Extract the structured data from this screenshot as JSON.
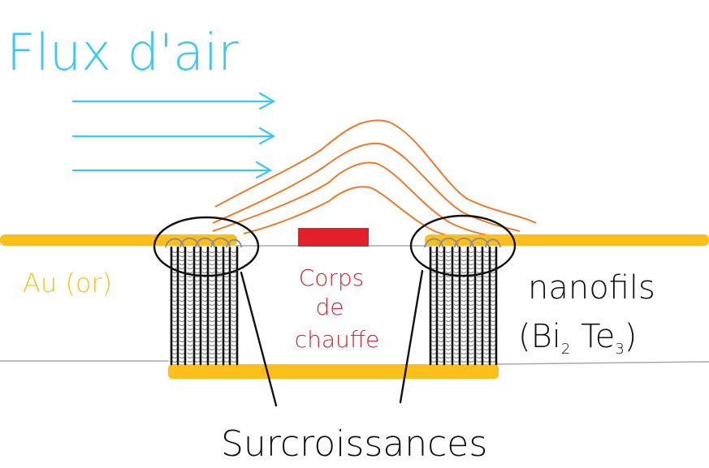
{
  "labels": {
    "airflow": "Flux d'air",
    "gold": "Au (or)",
    "heater_line1": "Corps",
    "heater_line2": "de",
    "heater_line3": "chauffe",
    "nanowires_line1": "nanofils",
    "nanowires_line2_prefix": "(Bi",
    "nanowires_sub1": "2",
    "nanowires_line2_mid": " Te",
    "nanowires_sub2": "3",
    "nanowires_line2_suffix": ")",
    "overgrowth": "Surcroissances"
  },
  "colors": {
    "airflow": "#3ec8f0",
    "gold": "#ffbf1a",
    "heater": "#e3202a",
    "heat_waves": "#f07a2a",
    "substrate_line": "#a9a9a9",
    "wires": "#111111",
    "overgrowth": "#9a9a9a",
    "ink": "#111111"
  }
}
